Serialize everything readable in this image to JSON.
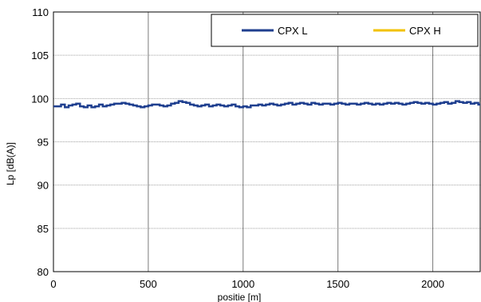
{
  "chart_data": {
    "type": "line",
    "xlabel": "positie [m]",
    "ylabel": "Lp [dB(A)]",
    "xlim": [
      0,
      2250
    ],
    "ylim": [
      80,
      110
    ],
    "xticks": [
      0,
      500,
      1000,
      1500,
      2000
    ],
    "yticks": [
      80,
      85,
      90,
      95,
      100,
      105,
      110
    ],
    "grid": true,
    "legend_position": "top-right",
    "series": [
      {
        "name": "CPX L",
        "color": "#1f3f8f",
        "step": 20,
        "values": [
          99.1,
          99.1,
          99.3,
          99.0,
          99.2,
          99.3,
          99.4,
          99.1,
          99.0,
          99.2,
          99.0,
          99.1,
          99.3,
          99.1,
          99.2,
          99.3,
          99.4,
          99.4,
          99.5,
          99.4,
          99.3,
          99.2,
          99.1,
          99.0,
          99.1,
          99.2,
          99.3,
          99.3,
          99.2,
          99.1,
          99.2,
          99.4,
          99.5,
          99.7,
          99.6,
          99.5,
          99.3,
          99.2,
          99.1,
          99.2,
          99.3,
          99.1,
          99.2,
          99.3,
          99.2,
          99.1,
          99.2,
          99.3,
          99.1,
          99.0,
          99.1,
          99.0,
          99.2,
          99.2,
          99.3,
          99.2,
          99.3,
          99.4,
          99.3,
          99.2,
          99.3,
          99.4,
          99.5,
          99.3,
          99.4,
          99.5,
          99.4,
          99.3,
          99.5,
          99.4,
          99.3,
          99.4,
          99.4,
          99.3,
          99.4,
          99.5,
          99.4,
          99.3,
          99.4,
          99.4,
          99.3,
          99.4,
          99.5,
          99.4,
          99.3,
          99.4,
          99.3,
          99.4,
          99.5,
          99.4,
          99.5,
          99.4,
          99.3,
          99.4,
          99.5,
          99.6,
          99.5,
          99.4,
          99.5,
          99.4,
          99.3,
          99.4,
          99.5,
          99.6,
          99.4,
          99.5,
          99.7,
          99.6,
          99.5,
          99.6,
          99.4,
          99.5,
          99.3
        ]
      },
      {
        "name": "CPX H",
        "color": "#f2c200",
        "values": []
      }
    ]
  }
}
